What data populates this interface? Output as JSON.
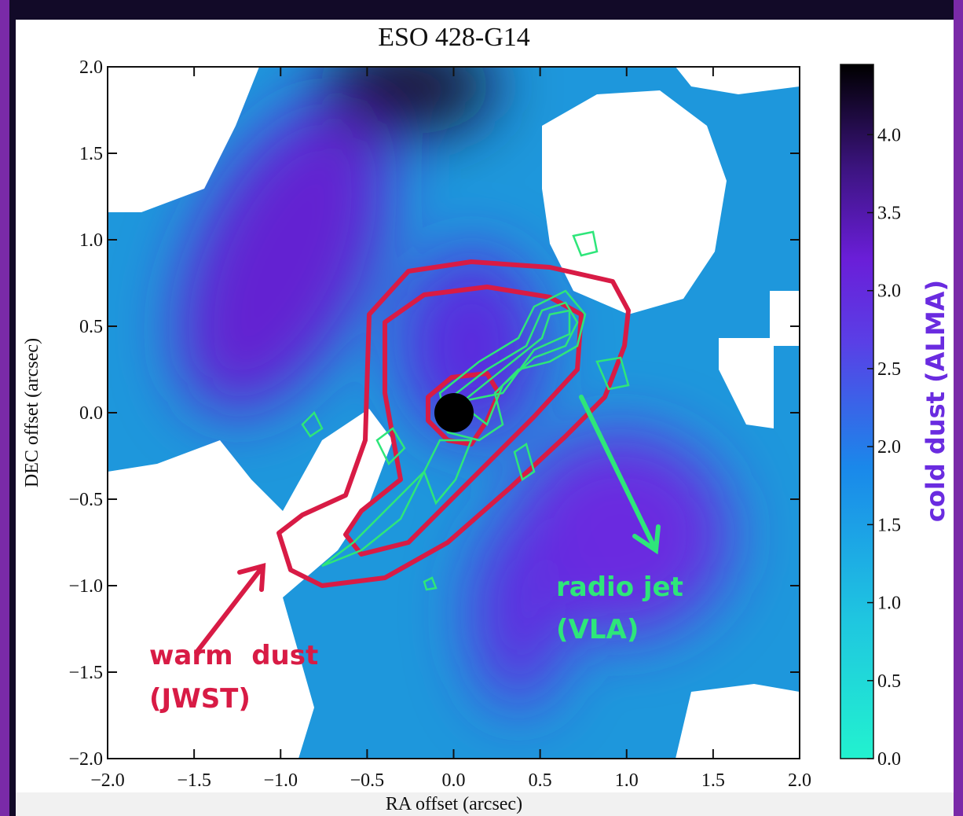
{
  "chart_data": {
    "type": "heatmap",
    "title": "ESO 428-G14",
    "xlabel": "RA offset (arcsec)",
    "ylabel": "DEC offset (arcsec)",
    "xlim": [
      -2,
      2
    ],
    "ylim": [
      -2,
      2
    ],
    "xticks": [
      {
        "value": -2,
        "label": "−2.0"
      },
      {
        "value": -1.5,
        "label": "−1.5"
      },
      {
        "value": -1,
        "label": "−1.0"
      },
      {
        "value": -0.5,
        "label": "−0.5"
      },
      {
        "value": 0,
        "label": "0.0"
      },
      {
        "value": 0.5,
        "label": "0.5"
      },
      {
        "value": 1,
        "label": "1.0"
      },
      {
        "value": 1.5,
        "label": "1.5"
      },
      {
        "value": 2,
        "label": "2.0"
      }
    ],
    "yticks": [
      {
        "value": -2,
        "label": "−2.0"
      },
      {
        "value": -1.5,
        "label": "−1.5"
      },
      {
        "value": -1,
        "label": "−1.0"
      },
      {
        "value": -0.5,
        "label": "−0.5"
      },
      {
        "value": 0,
        "label": "0.0"
      },
      {
        "value": 0.5,
        "label": "0.5"
      },
      {
        "value": 1,
        "label": "1.0"
      },
      {
        "value": 1.5,
        "label": "1.5"
      },
      {
        "value": 2,
        "label": "2.0"
      }
    ],
    "colorbar": {
      "label": "cold dust (ALMA)",
      "lim": [
        0,
        4.45
      ],
      "ticks": [
        {
          "value": 0,
          "label": "0.0"
        },
        {
          "value": 0.5,
          "label": "0.5"
        },
        {
          "value": 1,
          "label": "1.0"
        },
        {
          "value": 1.5,
          "label": "1.5"
        },
        {
          "value": 2,
          "label": "2.0"
        },
        {
          "value": 2.5,
          "label": "2.5"
        },
        {
          "value": 3,
          "label": "3.0"
        },
        {
          "value": 3.5,
          "label": "3.5"
        },
        {
          "value": 4,
          "label": "4.0"
        }
      ]
    },
    "annotations": {
      "warm_dust": [
        "warm  dust",
        "(JWST)"
      ],
      "radio_jet": [
        "radio jet",
        "(VLA)"
      ]
    }
  }
}
